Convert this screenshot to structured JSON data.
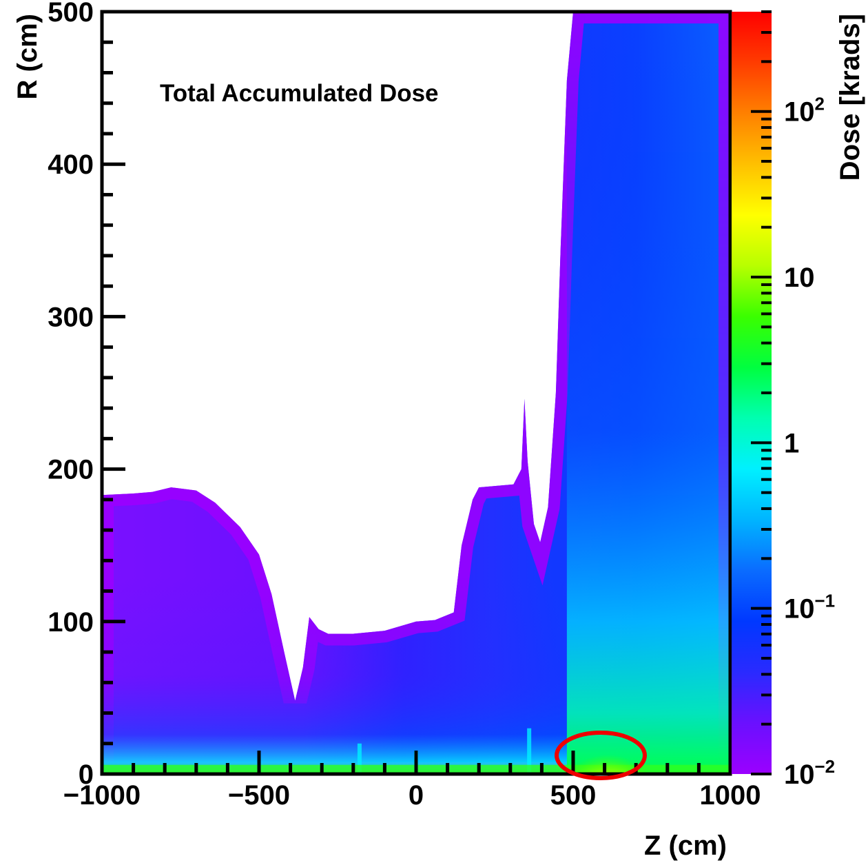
{
  "chart_data": {
    "type": "heatmap",
    "title": "Total Accumulated Dose",
    "xlabel": "Z (cm)",
    "ylabel": "R (cm)",
    "zlabel": "Dose [krads]",
    "xlim": [
      -1000,
      1000
    ],
    "ylim": [
      0,
      500
    ],
    "zlim": [
      0.01,
      400
    ],
    "z_scale": "log",
    "x_ticks": [
      {
        "value": -1000,
        "label": "−1000"
      },
      {
        "value": -500,
        "label": "−500"
      },
      {
        "value": 0,
        "label": "0"
      },
      {
        "value": 500,
        "label": "500"
      },
      {
        "value": 1000,
        "label": "1000"
      }
    ],
    "y_ticks": [
      {
        "value": 0,
        "label": "0"
      },
      {
        "value": 100,
        "label": "100"
      },
      {
        "value": 200,
        "label": "200"
      },
      {
        "value": 300,
        "label": "300"
      },
      {
        "value": 400,
        "label": "400"
      },
      {
        "value": 500,
        "label": "500"
      }
    ],
    "z_ticks": [
      {
        "value": 0.01,
        "base": "10",
        "exp": "−2"
      },
      {
        "value": 0.1,
        "base": "10",
        "exp": "−1"
      },
      {
        "value": 1,
        "base": "1",
        "exp": ""
      },
      {
        "value": 10,
        "base": "10",
        "exp": ""
      },
      {
        "value": 100,
        "base": "10",
        "exp": "2"
      }
    ],
    "colors": {
      "palette": [
        "#9b00ff",
        "#6a10ff",
        "#2a2aff",
        "#0038ff",
        "#0a6cff",
        "#00b4ff",
        "#00f0ff",
        "#00ffb0",
        "#00ff40",
        "#3aff00",
        "#b8ff00",
        "#ffff00",
        "#ffc000",
        "#ff8000",
        "#ff3c00",
        "#ff0000"
      ],
      "highlight": "#ee0000",
      "axis": "#000000"
    },
    "upper_boundary_points": [
      [
        -1000,
        183
      ],
      [
        -900,
        184
      ],
      [
        -840,
        185
      ],
      [
        -780,
        188
      ],
      [
        -700,
        186
      ],
      [
        -640,
        178
      ],
      [
        -560,
        162
      ],
      [
        -500,
        144
      ],
      [
        -460,
        118
      ],
      [
        -420,
        80
      ],
      [
        -385,
        48
      ],
      [
        -360,
        70
      ],
      [
        -340,
        103
      ],
      [
        -310,
        95
      ],
      [
        -280,
        92
      ],
      [
        -200,
        92
      ],
      [
        -100,
        94
      ],
      [
        0,
        100
      ],
      [
        60,
        101
      ],
      [
        120,
        106
      ],
      [
        145,
        150
      ],
      [
        180,
        180
      ],
      [
        200,
        188
      ],
      [
        310,
        190
      ],
      [
        335,
        200
      ],
      [
        345,
        246
      ],
      [
        355,
        205
      ],
      [
        375,
        164
      ],
      [
        395,
        152
      ],
      [
        420,
        175
      ],
      [
        445,
        250
      ],
      [
        460,
        345
      ],
      [
        480,
        455
      ],
      [
        500,
        500
      ],
      [
        1000,
        500
      ]
    ],
    "hot_spot": {
      "z_center": 610,
      "r_center": 12,
      "z_half_width": 140,
      "r_half_height": 16
    },
    "beam_pipe_hotspots": [
      [
        -180,
        20
      ],
      [
        0,
        15
      ],
      [
        360,
        30
      ]
    ]
  }
}
